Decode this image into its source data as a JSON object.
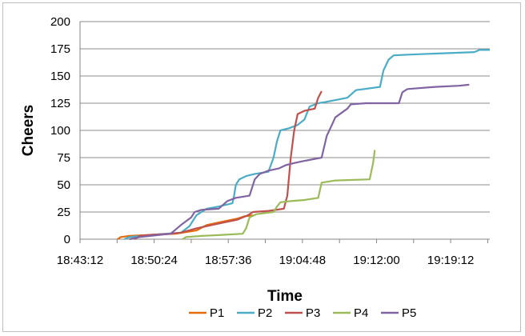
{
  "chart_data": {
    "type": "line",
    "title": "",
    "xlabel": "Time",
    "ylabel": "Cheers",
    "xlim": [
      "18:43:12",
      "19:23:00"
    ],
    "ylim": [
      0,
      200
    ],
    "yticks": [
      0,
      25,
      50,
      75,
      100,
      125,
      150,
      175,
      200
    ],
    "xticks": [
      "18:43:12",
      "18:50:24",
      "18:57:36",
      "19:04:48",
      "19:12:00",
      "19:19:12"
    ],
    "grid": "horizontal",
    "legend": "bottom",
    "series": [
      {
        "name": "P1",
        "color": "#E46C0A",
        "points": [
          [
            "18:46:50",
            0
          ],
          [
            "18:47:10",
            2
          ],
          [
            "18:48:00",
            3
          ],
          [
            "18:50:00",
            4
          ],
          [
            "18:52:30",
            5
          ],
          [
            "18:54:30",
            8
          ],
          [
            "18:55:30",
            13
          ],
          [
            "18:57:00",
            16
          ],
          [
            "18:58:30",
            19
          ],
          [
            "18:59:10",
            21
          ],
          [
            "19:00:00",
            22
          ]
        ]
      },
      {
        "name": "P2",
        "color": "#4BACC6",
        "points": [
          [
            "18:47:30",
            0
          ],
          [
            "18:48:00",
            2
          ],
          [
            "18:50:00",
            4
          ],
          [
            "18:53:00",
            6
          ],
          [
            "18:53:50",
            12
          ],
          [
            "18:54:30",
            22
          ],
          [
            "18:55:30",
            28
          ],
          [
            "18:56:40",
            30
          ],
          [
            "18:58:00",
            33
          ],
          [
            "18:58:10",
            40
          ],
          [
            "18:58:20",
            50
          ],
          [
            "18:58:40",
            55
          ],
          [
            "18:59:20",
            58
          ],
          [
            "19:00:10",
            60
          ],
          [
            "19:01:30",
            62
          ],
          [
            "19:02:00",
            75
          ],
          [
            "19:02:20",
            90
          ],
          [
            "19:02:40",
            100
          ],
          [
            "19:03:30",
            102
          ],
          [
            "19:04:20",
            105
          ],
          [
            "19:05:00",
            110
          ],
          [
            "19:05:30",
            122
          ],
          [
            "19:06:20",
            125
          ],
          [
            "19:07:00",
            126
          ],
          [
            "19:09:10",
            130
          ],
          [
            "19:10:00",
            137
          ],
          [
            "19:12:20",
            140
          ],
          [
            "19:12:40",
            155
          ],
          [
            "19:13:10",
            165
          ],
          [
            "19:13:40",
            169
          ],
          [
            "19:16:00",
            170
          ],
          [
            "19:19:00",
            171
          ],
          [
            "19:21:30",
            172
          ],
          [
            "19:22:00",
            174
          ],
          [
            "19:23:00",
            174
          ]
        ]
      },
      {
        "name": "P3",
        "color": "#C0504D",
        "points": [
          [
            "18:48:30",
            0
          ],
          [
            "18:49:00",
            3
          ],
          [
            "18:50:00",
            4
          ],
          [
            "18:52:00",
            5
          ],
          [
            "18:53:00",
            6
          ],
          [
            "18:54:30",
            10
          ],
          [
            "18:56:00",
            13
          ],
          [
            "18:57:00",
            15
          ],
          [
            "18:58:30",
            18
          ],
          [
            "18:59:30",
            22
          ],
          [
            "19:00:00",
            25
          ],
          [
            "19:01:30",
            26
          ],
          [
            "19:03:00",
            28
          ],
          [
            "19:03:20",
            40
          ],
          [
            "19:03:40",
            75
          ],
          [
            "19:04:00",
            100
          ],
          [
            "19:04:20",
            115
          ],
          [
            "19:05:00",
            118
          ],
          [
            "19:06:00",
            120
          ],
          [
            "19:06:20",
            130
          ],
          [
            "19:06:40",
            136
          ]
        ]
      },
      {
        "name": "P4",
        "color": "#9BBB59",
        "points": [
          [
            "18:53:10",
            0
          ],
          [
            "18:53:30",
            2
          ],
          [
            "18:55:00",
            3
          ],
          [
            "18:57:00",
            4
          ],
          [
            "18:59:00",
            5
          ],
          [
            "18:59:20",
            10
          ],
          [
            "18:59:40",
            20
          ],
          [
            "19:00:20",
            23
          ],
          [
            "19:02:00",
            25
          ],
          [
            "19:02:20",
            30
          ],
          [
            "19:02:40",
            34
          ],
          [
            "19:03:40",
            35
          ],
          [
            "19:05:00",
            36
          ],
          [
            "19:06:20",
            38
          ],
          [
            "19:06:40",
            52
          ],
          [
            "19:08:00",
            54
          ],
          [
            "19:11:20",
            55
          ],
          [
            "19:11:40",
            70
          ],
          [
            "19:11:50",
            82
          ]
        ]
      },
      {
        "name": "P5",
        "color": "#8064A2",
        "points": [
          [
            "18:48:00",
            0
          ],
          [
            "18:49:00",
            2
          ],
          [
            "18:50:00",
            3
          ],
          [
            "18:52:00",
            5
          ],
          [
            "18:53:00",
            13
          ],
          [
            "18:54:00",
            20
          ],
          [
            "18:54:20",
            25
          ],
          [
            "18:55:00",
            27
          ],
          [
            "18:56:40",
            28
          ],
          [
            "18:57:30",
            35
          ],
          [
            "18:58:20",
            38
          ],
          [
            "18:59:40",
            40
          ],
          [
            "19:00:10",
            55
          ],
          [
            "19:00:40",
            60
          ],
          [
            "19:01:30",
            63
          ],
          [
            "19:02:30",
            65
          ],
          [
            "19:03:10",
            68
          ],
          [
            "19:04:00",
            70
          ],
          [
            "19:05:00",
            72
          ],
          [
            "19:06:40",
            75
          ],
          [
            "19:07:10",
            95
          ],
          [
            "19:07:40",
            105
          ],
          [
            "19:08:00",
            112
          ],
          [
            "19:09:10",
            120
          ],
          [
            "19:09:30",
            124
          ],
          [
            "19:11:00",
            125
          ],
          [
            "19:14:10",
            125
          ],
          [
            "19:14:30",
            135
          ],
          [
            "19:15:00",
            138
          ],
          [
            "19:17:40",
            140
          ],
          [
            "19:20:00",
            141
          ],
          [
            "19:21:00",
            142
          ]
        ]
      }
    ]
  }
}
